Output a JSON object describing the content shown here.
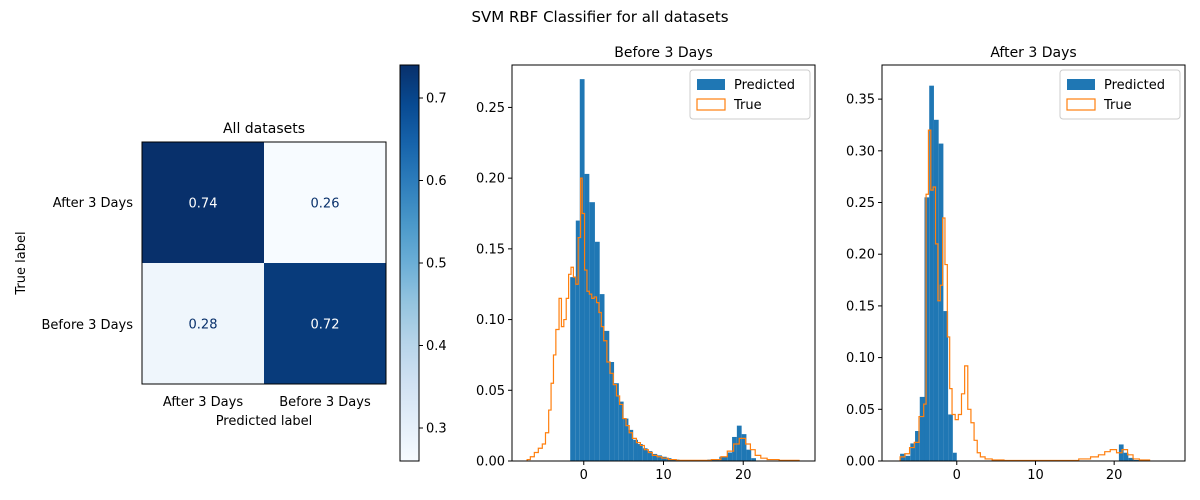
{
  "suptitle": "SVM RBF Classifier for all datasets",
  "chart_data": [
    {
      "type": "heatmap",
      "title": "All datasets",
      "xlabel": "Predicted label",
      "ylabel": "True label",
      "x_categories": [
        "After 3 Days",
        "Before 3 Days"
      ],
      "y_categories": [
        "After 3 Days",
        "Before 3 Days"
      ],
      "values": [
        [
          0.74,
          0.26
        ],
        [
          0.28,
          0.72
        ]
      ],
      "cell_labels": [
        [
          "0.74",
          "0.26"
        ],
        [
          "0.28",
          "0.72"
        ]
      ],
      "colormap": "Blues",
      "colorbar": {
        "range": [
          0.26,
          0.74
        ],
        "ticks": [
          0.3,
          0.4,
          0.5,
          0.6,
          0.7
        ],
        "tick_labels": [
          "0.3",
          "0.4",
          "0.5",
          "0.6",
          "0.7"
        ]
      }
    },
    {
      "type": "bar",
      "title": "Before 3 Days",
      "xlim": [
        -9,
        29
      ],
      "ylim": [
        0,
        0.28
      ],
      "x_ticks": [
        0,
        10,
        20
      ],
      "x_tick_labels": [
        "0",
        "10",
        "20"
      ],
      "y_ticks": [
        0,
        0.05,
        0.1,
        0.15,
        0.2,
        0.25
      ],
      "y_tick_labels": [
        "0.00",
        "0.05",
        "0.10",
        "0.15",
        "0.20",
        "0.25"
      ],
      "legend_position": "upper right",
      "series": [
        {
          "name": "Predicted",
          "style": "filled-histogram",
          "color": "#1f77b4",
          "bins": [
            [
              -1.7,
              -1.0,
              0.13
            ],
            [
              -1.0,
              -0.5,
              0.17
            ],
            [
              -0.5,
              0.1,
              0.27
            ],
            [
              0.1,
              0.7,
              0.203
            ],
            [
              0.7,
              1.4,
              0.183
            ],
            [
              1.4,
              2.0,
              0.155
            ],
            [
              2.0,
              2.6,
              0.118
            ],
            [
              2.6,
              3.2,
              0.092
            ],
            [
              3.2,
              3.8,
              0.07
            ],
            [
              3.8,
              4.4,
              0.055
            ],
            [
              4.4,
              5.0,
              0.042
            ],
            [
              5.0,
              5.6,
              0.03
            ],
            [
              5.6,
              6.2,
              0.022
            ],
            [
              6.2,
              6.8,
              0.015
            ],
            [
              6.8,
              7.4,
              0.012
            ],
            [
              7.4,
              8.0,
              0.009
            ],
            [
              8.0,
              8.6,
              0.007
            ],
            [
              8.6,
              9.2,
              0.005
            ],
            [
              9.2,
              9.8,
              0.004
            ],
            [
              9.8,
              10.4,
              0.003
            ],
            [
              10.4,
              11.0,
              0.002
            ],
            [
              11.0,
              12.0,
              0.001
            ],
            [
              12.0,
              15.5,
              0.0005
            ],
            [
              15.5,
              17.0,
              0.001
            ],
            [
              17.0,
              18.0,
              0.003
            ],
            [
              18.0,
              18.6,
              0.006
            ],
            [
              18.6,
              19.2,
              0.017
            ],
            [
              19.2,
              19.8,
              0.025
            ],
            [
              19.8,
              20.4,
              0.019
            ],
            [
              20.4,
              21.0,
              0.008
            ],
            [
              21.0,
              21.6,
              0.002
            ]
          ]
        },
        {
          "name": "True",
          "style": "step-histogram",
          "color": "#ff7f0e",
          "steps": [
            [
              -7.1,
              -6.7,
              0.001
            ],
            [
              -6.7,
              -6.2,
              0.003
            ],
            [
              -6.2,
              -5.7,
              0.006
            ],
            [
              -5.7,
              -5.2,
              0.009
            ],
            [
              -5.2,
              -4.8,
              0.012
            ],
            [
              -4.8,
              -4.4,
              0.02
            ],
            [
              -4.4,
              -4.1,
              0.036
            ],
            [
              -4.1,
              -3.8,
              0.055
            ],
            [
              -3.8,
              -3.5,
              0.075
            ],
            [
              -3.5,
              -3.1,
              0.093
            ],
            [
              -3.1,
              -2.8,
              0.115
            ],
            [
              -2.8,
              -2.5,
              0.095
            ],
            [
              -2.5,
              -2.2,
              0.1
            ],
            [
              -2.2,
              -1.9,
              0.115
            ],
            [
              -1.9,
              -1.6,
              0.132
            ],
            [
              -1.6,
              -1.3,
              0.137
            ],
            [
              -1.3,
              -1.0,
              0.13
            ],
            [
              -1.0,
              -0.7,
              0.125
            ],
            [
              -0.7,
              -0.4,
              0.158
            ],
            [
              -0.4,
              -0.2,
              0.2
            ],
            [
              -0.2,
              0.1,
              0.175
            ],
            [
              0.1,
              0.4,
              0.135
            ],
            [
              0.4,
              0.7,
              0.12
            ],
            [
              0.7,
              1.0,
              0.118
            ],
            [
              1.0,
              1.3,
              0.115
            ],
            [
              1.3,
              1.6,
              0.116
            ],
            [
              1.6,
              1.9,
              0.112
            ],
            [
              1.9,
              2.2,
              0.105
            ],
            [
              2.2,
              2.5,
              0.095
            ],
            [
              2.5,
              2.9,
              0.085
            ],
            [
              2.9,
              3.3,
              0.07
            ],
            [
              3.3,
              3.7,
              0.062
            ],
            [
              3.7,
              4.1,
              0.054
            ],
            [
              4.1,
              4.5,
              0.046
            ],
            [
              4.5,
              4.9,
              0.04
            ],
            [
              4.9,
              5.3,
              0.03
            ],
            [
              5.3,
              5.7,
              0.025
            ],
            [
              5.7,
              6.1,
              0.02
            ],
            [
              6.1,
              6.6,
              0.016
            ],
            [
              6.6,
              7.1,
              0.013
            ],
            [
              7.1,
              7.6,
              0.011
            ],
            [
              7.6,
              8.1,
              0.008
            ],
            [
              8.1,
              8.6,
              0.006
            ],
            [
              8.6,
              9.2,
              0.004
            ],
            [
              9.2,
              9.8,
              0.003
            ],
            [
              9.8,
              10.6,
              0.002
            ],
            [
              10.6,
              11.6,
              0.001
            ],
            [
              11.6,
              16.0,
              0.0005
            ],
            [
              16.0,
              17.2,
              0.001
            ],
            [
              17.2,
              18.0,
              0.003
            ],
            [
              18.0,
              18.8,
              0.007
            ],
            [
              18.8,
              19.5,
              0.012
            ],
            [
              19.5,
              20.3,
              0.016
            ],
            [
              20.3,
              20.9,
              0.012
            ],
            [
              20.9,
              21.5,
              0.008
            ],
            [
              21.5,
              22.2,
              0.004
            ],
            [
              22.2,
              23.0,
              0.002
            ],
            [
              23.0,
              24.5,
              0.001
            ],
            [
              24.5,
              27.0,
              0.0005
            ]
          ]
        }
      ]
    },
    {
      "type": "bar",
      "title": "After 3 Days",
      "xlim": [
        -9.5,
        29
      ],
      "ylim": [
        0,
        0.383
      ],
      "x_ticks": [
        0,
        10,
        20
      ],
      "x_tick_labels": [
        "0",
        "10",
        "20"
      ],
      "y_ticks": [
        0,
        0.05,
        0.1,
        0.15,
        0.2,
        0.25,
        0.3,
        0.35
      ],
      "y_tick_labels": [
        "0.00",
        "0.05",
        "0.10",
        "0.15",
        "0.20",
        "0.25",
        "0.30",
        "0.35"
      ],
      "legend_position": "upper right",
      "series": [
        {
          "name": "Predicted",
          "style": "filled-histogram",
          "color": "#1f77b4",
          "bins": [
            [
              -7.2,
              -6.5,
              0.007
            ],
            [
              -6.5,
              -5.9,
              0.005
            ],
            [
              -5.9,
              -5.3,
              0.017
            ],
            [
              -5.3,
              -4.7,
              0.029
            ],
            [
              -4.7,
              -4.1,
              0.062
            ],
            [
              -4.1,
              -3.5,
              0.255
            ],
            [
              -3.5,
              -2.9,
              0.363
            ],
            [
              -2.9,
              -2.3,
              0.33
            ],
            [
              -2.3,
              -1.7,
              0.307
            ],
            [
              -1.7,
              -1.1,
              0.145
            ],
            [
              -1.1,
              -0.5,
              0.045
            ],
            [
              -0.5,
              0.0,
              0.008
            ],
            [
              0.0,
              20.6,
              0.0005
            ],
            [
              20.6,
              21.2,
              0.016
            ],
            [
              21.2,
              21.8,
              0.008
            ],
            [
              21.8,
              22.5,
              0.003
            ],
            [
              22.5,
              24.5,
              0.001
            ]
          ]
        },
        {
          "name": "True",
          "style": "step-histogram",
          "color": "#ff7f0e",
          "steps": [
            [
              -7.2,
              -6.6,
              0.004
            ],
            [
              -6.6,
              -6.0,
              0.007
            ],
            [
              -6.0,
              -5.4,
              0.013
            ],
            [
              -5.4,
              -4.8,
              0.018
            ],
            [
              -4.8,
              -4.2,
              0.043
            ],
            [
              -4.2,
              -3.9,
              0.055
            ],
            [
              -3.9,
              -3.6,
              0.258
            ],
            [
              -3.6,
              -3.3,
              0.32
            ],
            [
              -3.3,
              -3.0,
              0.262
            ],
            [
              -3.0,
              -2.7,
              0.265
            ],
            [
              -2.7,
              -2.4,
              0.21
            ],
            [
              -2.4,
              -2.1,
              0.155
            ],
            [
              -2.1,
              -1.8,
              0.17
            ],
            [
              -1.8,
              -1.5,
              0.235
            ],
            [
              -1.5,
              -1.2,
              0.19
            ],
            [
              -1.2,
              -0.9,
              0.12
            ],
            [
              -0.9,
              -0.6,
              0.07
            ],
            [
              -0.6,
              -0.2,
              0.045
            ],
            [
              -0.2,
              0.2,
              0.04
            ],
            [
              0.2,
              0.6,
              0.045
            ],
            [
              0.6,
              1.0,
              0.065
            ],
            [
              1.0,
              1.4,
              0.092
            ],
            [
              1.4,
              1.8,
              0.05
            ],
            [
              1.8,
              2.2,
              0.037
            ],
            [
              2.2,
              2.6,
              0.02
            ],
            [
              2.6,
              3.0,
              0.008
            ],
            [
              3.0,
              3.6,
              0.004
            ],
            [
              3.6,
              4.5,
              0.002
            ],
            [
              4.5,
              6.0,
              0.001
            ],
            [
              6.0,
              15.5,
              0.0005
            ],
            [
              15.5,
              17.0,
              0.002
            ],
            [
              17.0,
              18.0,
              0.004
            ],
            [
              18.0,
              18.8,
              0.006
            ],
            [
              18.8,
              19.5,
              0.009
            ],
            [
              19.5,
              20.3,
              0.011
            ],
            [
              20.3,
              21.0,
              0.008
            ],
            [
              21.0,
              21.7,
              0.011
            ],
            [
              21.7,
              22.4,
              0.006
            ],
            [
              22.4,
              23.2,
              0.002
            ],
            [
              23.2,
              24.5,
              0.001
            ]
          ]
        }
      ]
    }
  ]
}
